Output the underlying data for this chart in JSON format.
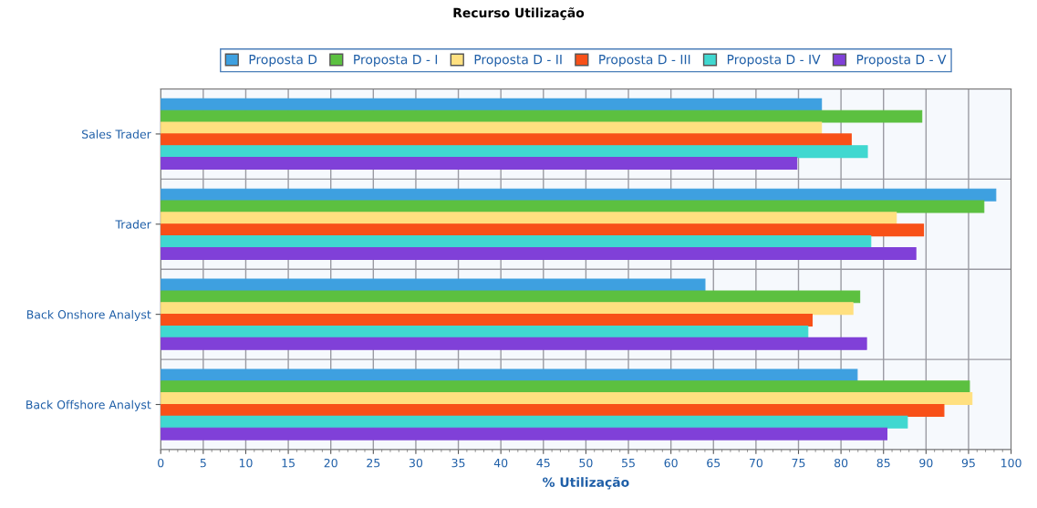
{
  "chart_data": {
    "type": "bar",
    "orientation": "horizontal",
    "title": "Recurso Utilização",
    "xlabel": "% Utilização",
    "categories": [
      "Sales Trader",
      "Trader",
      "Back Onshore Analyst",
      "Back Offshore Analyst"
    ],
    "series": [
      {
        "name": "Proposta D",
        "color": "#3ea0e0",
        "values": [
          77.7,
          98.2,
          64.0,
          81.9
        ]
      },
      {
        "name": "Proposta D - I",
        "color": "#5cc040",
        "values": [
          89.5,
          96.8,
          82.2,
          95.1
        ]
      },
      {
        "name": "Proposta D - II",
        "color": "#ffe080",
        "values": [
          77.7,
          86.5,
          81.4,
          95.4
        ]
      },
      {
        "name": "Proposta D - III",
        "color": "#f85018",
        "values": [
          81.2,
          89.7,
          76.6,
          92.1
        ]
      },
      {
        "name": "Proposta D - IV",
        "color": "#40d8d0",
        "values": [
          83.1,
          83.5,
          76.1,
          87.8
        ]
      },
      {
        "name": "Proposta D - V",
        "color": "#8040d8",
        "values": [
          74.8,
          88.8,
          83.0,
          85.4
        ]
      }
    ],
    "xlim": [
      0,
      100
    ],
    "xticks": [
      0,
      5,
      10,
      15,
      20,
      25,
      30,
      35,
      40,
      45,
      50,
      55,
      60,
      65,
      70,
      75,
      80,
      85,
      90,
      95,
      100
    ],
    "grid": true,
    "legend": "top"
  }
}
